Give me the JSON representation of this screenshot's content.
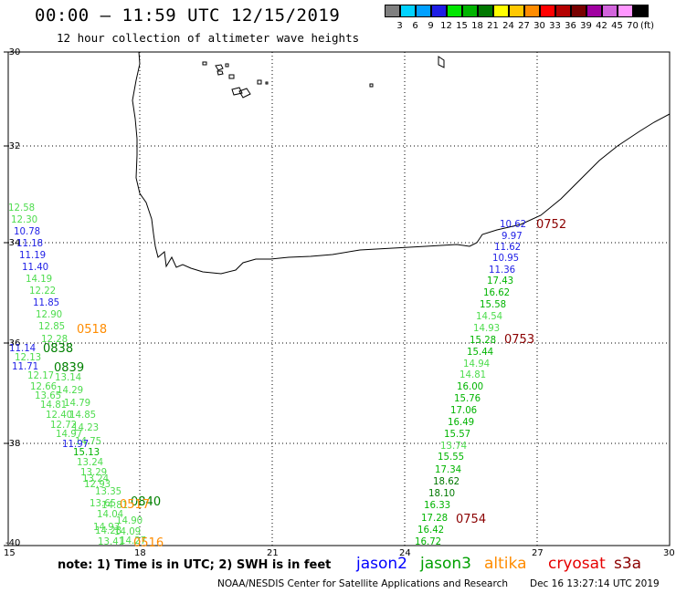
{
  "header": {
    "title": "00:00 – 11:59 UTC 12/15/2019",
    "subtitle": "12 hour collection of altimeter wave heights"
  },
  "color_scale": {
    "unit_label": "(ft)",
    "bins": [
      {
        "label": "3",
        "color": "#808080"
      },
      {
        "label": "6",
        "color": "#00d2ff"
      },
      {
        "label": "9",
        "color": "#00a0ff"
      },
      {
        "label": "12",
        "color": "#1e1ee6"
      },
      {
        "label": "15",
        "color": "#00e600"
      },
      {
        "label": "18",
        "color": "#00b400"
      },
      {
        "label": "21",
        "color": "#007800"
      },
      {
        "label": "24",
        "color": "#ffff00"
      },
      {
        "label": "27",
        "color": "#ffc800"
      },
      {
        "label": "30",
        "color": "#ff8c00"
      },
      {
        "label": "33",
        "color": "#ff0000"
      },
      {
        "label": "36",
        "color": "#b40000"
      },
      {
        "label": "39",
        "color": "#780000"
      },
      {
        "label": "42",
        "color": "#a000a0"
      },
      {
        "label": "45",
        "color": "#d264dc"
      },
      {
        "label": "70",
        "color": "#ff96ff"
      },
      {
        "label": "",
        "color": "#000000"
      }
    ]
  },
  "map": {
    "lat_labels": [
      "-30",
      "-32",
      "-34",
      "-36",
      "-38",
      "-40"
    ],
    "lon_labels": [
      "15",
      "18",
      "21",
      "24",
      "27",
      "30"
    ]
  },
  "observations": {
    "track_a_blue": [
      {
        "v": "10.62",
        "c": "#1e1ee6"
      },
      {
        "v": "9.97",
        "c": "#1e1ee6"
      },
      {
        "v": "11.62",
        "c": "#1e1ee6"
      },
      {
        "v": "10.95",
        "c": "#1e1ee6"
      },
      {
        "v": "11.36",
        "c": "#1e1ee6"
      }
    ],
    "track_a": [
      {
        "v": "17.43",
        "c": "#00b400"
      },
      {
        "v": "16.62",
        "c": "#00b400"
      },
      {
        "v": "15.58",
        "c": "#00b400"
      },
      {
        "v": "14.54",
        "c": "#4ddc4d"
      },
      {
        "v": "14.93",
        "c": "#4ddc4d"
      },
      {
        "v": "15.28",
        "c": "#00b400"
      },
      {
        "v": "15.44",
        "c": "#00b400"
      },
      {
        "v": "14.94",
        "c": "#4ddc4d"
      },
      {
        "v": "14.81",
        "c": "#4ddc4d"
      },
      {
        "v": "16.00",
        "c": "#00b400"
      },
      {
        "v": "15.76",
        "c": "#00b400"
      },
      {
        "v": "17.06",
        "c": "#00b400"
      },
      {
        "v": "16.49",
        "c": "#00b400"
      },
      {
        "v": "15.57",
        "c": "#00b400"
      },
      {
        "v": "13.74",
        "c": "#4ddc4d"
      },
      {
        "v": "15.55",
        "c": "#00b400"
      },
      {
        "v": "17.34",
        "c": "#00b400"
      },
      {
        "v": "18.62",
        "c": "#007800"
      },
      {
        "v": "18.10",
        "c": "#007800"
      },
      {
        "v": "16.33",
        "c": "#00b400"
      },
      {
        "v": "17.28",
        "c": "#00b400"
      },
      {
        "v": "16.42",
        "c": "#00b400"
      },
      {
        "v": "16.72",
        "c": "#00b400"
      }
    ],
    "track_b": [
      {
        "v": "12.58",
        "c": "#4ddc4d"
      },
      {
        "v": "12.30",
        "c": "#4ddc4d"
      },
      {
        "v": "10.78",
        "c": "#1e1ee6"
      },
      {
        "v": "11.18",
        "c": "#1e1ee6"
      },
      {
        "v": "11.19",
        "c": "#1e1ee6"
      },
      {
        "v": "11.40",
        "c": "#1e1ee6"
      },
      {
        "v": "14.19",
        "c": "#4ddc4d"
      },
      {
        "v": "12.22",
        "c": "#4ddc4d"
      },
      {
        "v": "11.85",
        "c": "#1e1ee6"
      },
      {
        "v": "12.90",
        "c": "#4ddc4d"
      },
      {
        "v": "12.85",
        "c": "#4ddc4d"
      },
      {
        "v": "12.28",
        "c": "#4ddc4d"
      },
      {
        "v": "11.14",
        "c": "#1e1ee6"
      },
      {
        "v": "12.13",
        "c": "#4ddc4d"
      },
      {
        "v": "11.71",
        "c": "#1e1ee6"
      },
      {
        "v": "12.17",
        "c": "#4ddc4d"
      },
      {
        "v": "13.14",
        "c": "#4ddc4d"
      },
      {
        "v": "12.66",
        "c": "#4ddc4d"
      },
      {
        "v": "14.29",
        "c": "#4ddc4d"
      },
      {
        "v": "13.65",
        "c": "#4ddc4d"
      },
      {
        "v": "14.79",
        "c": "#4ddc4d"
      },
      {
        "v": "14.81",
        "c": "#4ddc4d"
      },
      {
        "v": "14.85",
        "c": "#4ddc4d"
      },
      {
        "v": "12.40",
        "c": "#4ddc4d"
      },
      {
        "v": "12.72",
        "c": "#4ddc4d"
      },
      {
        "v": "14.23",
        "c": "#4ddc4d"
      },
      {
        "v": "14.97",
        "c": "#4ddc4d"
      },
      {
        "v": "14.75",
        "c": "#4ddc4d"
      },
      {
        "v": "11.97",
        "c": "#1e1ee6"
      },
      {
        "v": "15.13",
        "c": "#00b400"
      },
      {
        "v": "13.24",
        "c": "#4ddc4d"
      },
      {
        "v": "13.29",
        "c": "#4ddc4d"
      },
      {
        "v": "13.24",
        "c": "#4ddc4d"
      },
      {
        "v": "12.93",
        "c": "#4ddc4d"
      },
      {
        "v": "13.35",
        "c": "#4ddc4d"
      },
      {
        "v": "13.65",
        "c": "#4ddc4d"
      },
      {
        "v": "14.81",
        "c": "#4ddc4d"
      },
      {
        "v": "14.04",
        "c": "#4ddc4d"
      },
      {
        "v": "14.90",
        "c": "#4ddc4d"
      },
      {
        "v": "14.93",
        "c": "#4ddc4d"
      },
      {
        "v": "14.28",
        "c": "#4ddc4d"
      },
      {
        "v": "14.09",
        "c": "#4ddc4d"
      },
      {
        "v": "13.41",
        "c": "#4ddc4d"
      },
      {
        "v": "14.27",
        "c": "#4ddc4d"
      }
    ],
    "pass_times": [
      {
        "t": "0752",
        "c": "#8b0000"
      },
      {
        "t": "0753",
        "c": "#8b0000"
      },
      {
        "t": "0754",
        "c": "#8b0000"
      },
      {
        "t": "0518",
        "c": "#ff8c00"
      },
      {
        "t": "0838",
        "c": "#008000"
      },
      {
        "t": "0839",
        "c": "#008000"
      },
      {
        "t": "0840",
        "c": "#008000"
      },
      {
        "t": "0517",
        "c": "#ff8c00"
      },
      {
        "t": "0516",
        "c": "#ff8c00"
      }
    ]
  },
  "footer": {
    "note": "note: 1) Time is in UTC; 2) SWH is in feet",
    "legend": [
      {
        "label": "jason2",
        "color": "#0000ff"
      },
      {
        "label": "jason3",
        "color": "#00a000"
      },
      {
        "label": "altika",
        "color": "#ff8c00"
      },
      {
        "label": "cryosat",
        "color": "#e60000"
      },
      {
        "label": "s3a",
        "color": "#8b0000"
      }
    ],
    "credit": "NOAA/NESDIS Center for Satellite Applications and Research",
    "timestamp": "Dec 16 13:27:14 UTC 2019"
  }
}
